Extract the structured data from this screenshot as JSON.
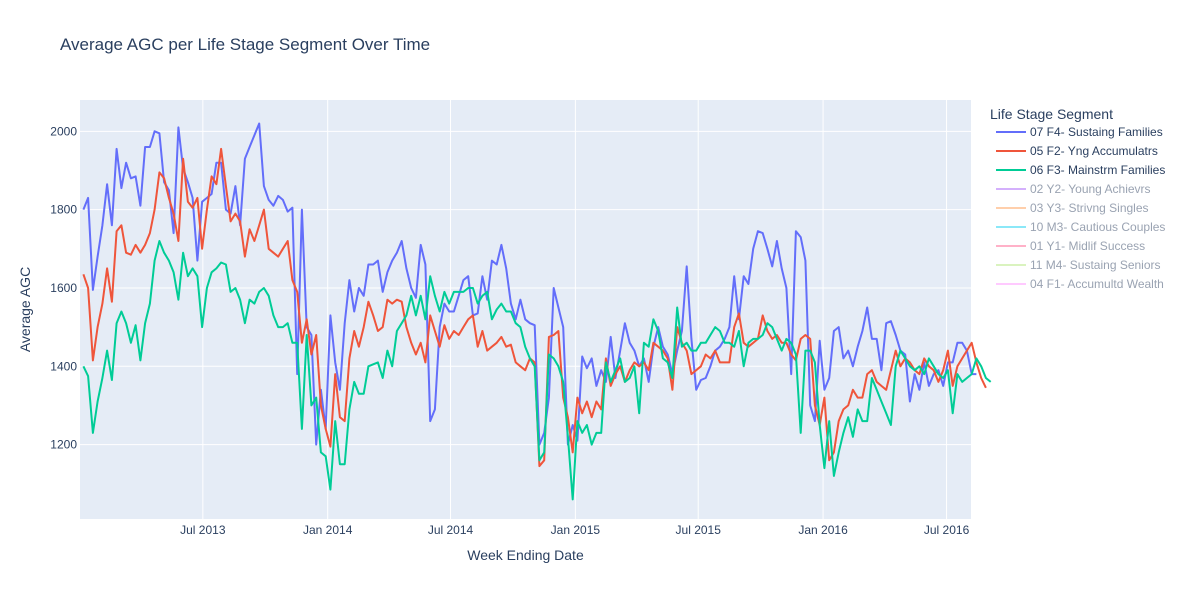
{
  "chart_data": {
    "type": "line",
    "title": "Average AGC per Life Stage Segment Over Time",
    "xlabel": "Week Ending Date",
    "ylabel": "Average AGC",
    "legend_title": "Life Stage Segment",
    "legend_position": "right",
    "grid": true,
    "xlim": [
      "2013-01-01",
      "2016-08-06"
    ],
    "ylim": [
      1010,
      2080
    ],
    "x_ticks": [
      {
        "date": "2013-07-01",
        "label": "Jul 2013"
      },
      {
        "date": "2014-01-01",
        "label": "Jan 2014"
      },
      {
        "date": "2014-07-01",
        "label": "Jul 2014"
      },
      {
        "date": "2015-01-01",
        "label": "Jan 2015"
      },
      {
        "date": "2015-07-01",
        "label": "Jul 2015"
      },
      {
        "date": "2016-01-01",
        "label": "Jan 2016"
      },
      {
        "date": "2016-07-01",
        "label": "Jul 2016"
      }
    ],
    "y_ticks": [
      1200,
      1400,
      1600,
      1800,
      2000
    ],
    "x_start": "2013-01-06",
    "x_step_days": 7,
    "series": [
      {
        "name": "07 F4- Sustaing Families",
        "color": "#636efa",
        "visible": true,
        "values": [
          1800,
          1830,
          1595,
          1680,
          1760,
          1865,
          1760,
          1955,
          1855,
          1920,
          1880,
          1885,
          1810,
          1960,
          1960,
          2000,
          1995,
          1870,
          1850,
          1740,
          2010,
          1905,
          1870,
          1830,
          1670,
          1820,
          1830,
          1840,
          1920,
          1920,
          1800,
          1790,
          1860,
          1760,
          1930,
          1960,
          1990,
          2020,
          1860,
          1825,
          1810,
          1835,
          1825,
          1795,
          1805,
          1380,
          1800,
          1500,
          1480,
          1200,
          1340,
          1240,
          1530,
          1410,
          1340,
          1510,
          1620,
          1540,
          1600,
          1580,
          1660,
          1660,
          1670,
          1590,
          1640,
          1670,
          1690,
          1720,
          1650,
          1600,
          1575,
          1710,
          1660,
          1260,
          1290,
          1500,
          1560,
          1540,
          1540,
          1580,
          1620,
          1630,
          1530,
          1535,
          1630,
          1570,
          1670,
          1660,
          1710,
          1650,
          1560,
          1520,
          1570,
          1520,
          1510,
          1505,
          1200,
          1230,
          1320,
          1600,
          1550,
          1500,
          1200,
          1250,
          1210,
          1425,
          1395,
          1420,
          1350,
          1390,
          1360,
          1475,
          1370,
          1440,
          1510,
          1460,
          1440,
          1400,
          1420,
          1360,
          1450,
          1500,
          1450,
          1430,
          1380,
          1440,
          1490,
          1655,
          1470,
          1340,
          1365,
          1370,
          1400,
          1440,
          1450,
          1470,
          1500,
          1630,
          1520,
          1630,
          1610,
          1700,
          1745,
          1740,
          1700,
          1655,
          1720,
          1650,
          1600,
          1380,
          1745,
          1730,
          1670,
          1300,
          1260,
          1465,
          1340,
          1370,
          1490,
          1500,
          1420,
          1440,
          1400,
          1450,
          1490,
          1550,
          1470,
          1470,
          1390,
          1510,
          1515,
          1480,
          1440,
          1430,
          1310,
          1380,
          1340,
          1410,
          1350,
          1380,
          1390,
          1350,
          1410,
          1410,
          1460,
          1460,
          1440,
          1380,
          1380
        ]
      },
      {
        "name": "05 F2- Yng Accumulatrs",
        "color": "#ef553b",
        "visible": true,
        "values": [
          1635,
          1600,
          1415,
          1500,
          1560,
          1650,
          1565,
          1745,
          1760,
          1690,
          1685,
          1710,
          1690,
          1710,
          1740,
          1800,
          1895,
          1880,
          1830,
          1790,
          1720,
          1930,
          1820,
          1805,
          1830,
          1700,
          1800,
          1885,
          1865,
          1955,
          1860,
          1770,
          1790,
          1770,
          1680,
          1750,
          1720,
          1760,
          1800,
          1700,
          1690,
          1680,
          1700,
          1720,
          1620,
          1590,
          1460,
          1520,
          1430,
          1480,
          1300,
          1240,
          1195,
          1380,
          1270,
          1260,
          1420,
          1490,
          1450,
          1500,
          1565,
          1530,
          1490,
          1500,
          1570,
          1560,
          1570,
          1565,
          1500,
          1460,
          1430,
          1460,
          1410,
          1530,
          1490,
          1450,
          1505,
          1470,
          1490,
          1480,
          1500,
          1520,
          1530,
          1450,
          1490,
          1440,
          1450,
          1460,
          1475,
          1450,
          1455,
          1410,
          1400,
          1390,
          1420,
          1410,
          1145,
          1160,
          1475,
          1480,
          1490,
          1320,
          1270,
          1180,
          1320,
          1280,
          1310,
          1270,
          1310,
          1290,
          1420,
          1350,
          1380,
          1400,
          1360,
          1390,
          1410,
          1400,
          1410,
          1390,
          1460,
          1450,
          1440,
          1420,
          1340,
          1500,
          1460,
          1440,
          1380,
          1390,
          1400,
          1430,
          1420,
          1440,
          1410,
          1410,
          1410,
          1500,
          1535,
          1460,
          1450,
          1460,
          1470,
          1530,
          1490,
          1470,
          1480,
          1460,
          1460,
          1430,
          1415,
          1470,
          1480,
          1470,
          1300,
          1250,
          1320,
          1160,
          1180,
          1260,
          1290,
          1300,
          1340,
          1320,
          1320,
          1380,
          1390,
          1360,
          1350,
          1340,
          1390,
          1440,
          1400,
          1420,
          1410,
          1390,
          1380,
          1420,
          1400,
          1390,
          1360,
          1390,
          1440,
          1350,
          1400,
          1420,
          1440,
          1460,
          1410,
          1370,
          1345
        ]
      },
      {
        "name": "06 F3- Mainstrm Families",
        "color": "#00cc96",
        "visible": true,
        "values": [
          1400,
          1375,
          1230,
          1310,
          1370,
          1440,
          1365,
          1510,
          1540,
          1510,
          1460,
          1505,
          1415,
          1510,
          1560,
          1670,
          1720,
          1690,
          1670,
          1640,
          1570,
          1690,
          1630,
          1650,
          1630,
          1500,
          1600,
          1640,
          1650,
          1665,
          1660,
          1590,
          1600,
          1570,
          1510,
          1570,
          1560,
          1590,
          1600,
          1580,
          1530,
          1500,
          1500,
          1510,
          1460,
          1460,
          1240,
          1480,
          1300,
          1320,
          1180,
          1170,
          1085,
          1260,
          1150,
          1150,
          1290,
          1360,
          1330,
          1330,
          1400,
          1405,
          1410,
          1370,
          1440,
          1400,
          1490,
          1510,
          1530,
          1580,
          1530,
          1580,
          1520,
          1630,
          1580,
          1540,
          1590,
          1560,
          1590,
          1590,
          1590,
          1600,
          1600,
          1560,
          1580,
          1590,
          1520,
          1545,
          1560,
          1540,
          1540,
          1510,
          1500,
          1450,
          1420,
          1400,
          1160,
          1180,
          1430,
          1420,
          1400,
          1360,
          1220,
          1060,
          1260,
          1230,
          1250,
          1200,
          1230,
          1230,
          1410,
          1360,
          1390,
          1420,
          1360,
          1370,
          1400,
          1280,
          1460,
          1450,
          1520,
          1490,
          1420,
          1410,
          1370,
          1550,
          1450,
          1460,
          1440,
          1440,
          1460,
          1460,
          1480,
          1500,
          1490,
          1460,
          1460,
          1450,
          1490,
          1400,
          1460,
          1470,
          1470,
          1480,
          1510,
          1500,
          1470,
          1440,
          1470,
          1460,
          1430,
          1230,
          1440,
          1440,
          1410,
          1250,
          1140,
          1260,
          1120,
          1180,
          1230,
          1270,
          1220,
          1290,
          1260,
          1260,
          1370,
          1340,
          1310,
          1280,
          1250,
          1400,
          1440,
          1420,
          1400,
          1390,
          1400,
          1380,
          1420,
          1400,
          1380,
          1370,
          1390,
          1280,
          1380,
          1360,
          1370,
          1380,
          1420,
          1400,
          1370,
          1360
        ]
      },
      {
        "name": "02 Y2- Young Achievrs",
        "color": "#ab63fa",
        "visible": false,
        "values": []
      },
      {
        "name": "03 Y3- Strivng Singles",
        "color": "#ffa15a",
        "visible": false,
        "values": []
      },
      {
        "name": "10 M3- Cautious Couples",
        "color": "#19d3f3",
        "visible": false,
        "values": []
      },
      {
        "name": "01 Y1- Midlif Success",
        "color": "#ff6692",
        "visible": false,
        "values": []
      },
      {
        "name": "11 M4- Sustaing Seniors",
        "color": "#b6e880",
        "visible": false,
        "values": []
      },
      {
        "name": "04 F1- Accumultd Wealth",
        "color": "#ff97ff",
        "visible": false,
        "values": []
      }
    ]
  },
  "colors": {
    "plot_bg": "#e5ecf6",
    "grid": "#ffffff",
    "text": "#2a3f5f"
  }
}
